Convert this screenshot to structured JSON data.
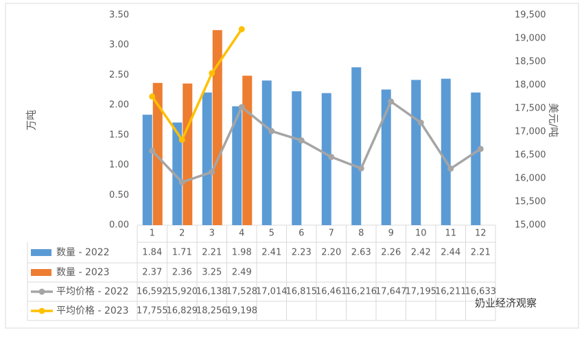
{
  "chart_data": {
    "type": "bar",
    "y_label": "万吨",
    "y2_label": "美元/吨",
    "watermark": "奶业经济观察",
    "categories": [
      "1",
      "2",
      "3",
      "4",
      "5",
      "6",
      "7",
      "8",
      "9",
      "10",
      "11",
      "12"
    ],
    "ylim": [
      0,
      3.5
    ],
    "yticks": [
      {
        "value": 0,
        "label": "0.00"
      },
      {
        "value": 0.5,
        "label": "0.50"
      },
      {
        "value": 1,
        "label": "1.00"
      },
      {
        "value": 1.5,
        "label": "1.50"
      },
      {
        "value": 2,
        "label": "2.00"
      },
      {
        "value": 2.5,
        "label": "2.50"
      },
      {
        "value": 3,
        "label": "3.00"
      },
      {
        "value": 3.5,
        "label": "3.50"
      }
    ],
    "y2lim": [
      15000,
      19500
    ],
    "y2ticks": [
      {
        "value": 15000,
        "label": "15,000"
      },
      {
        "value": 15500,
        "label": "15,500"
      },
      {
        "value": 16000,
        "label": "16,000"
      },
      {
        "value": 16500,
        "label": "16,500"
      },
      {
        "value": 17000,
        "label": "17,000"
      },
      {
        "value": 17500,
        "label": "17,500"
      },
      {
        "value": 18000,
        "label": "18,000"
      },
      {
        "value": 18500,
        "label": "18,500"
      },
      {
        "value": 19000,
        "label": "19,000"
      },
      {
        "value": 19500,
        "label": "19,500"
      }
    ],
    "grid": false,
    "series": [
      {
        "name": "数量 - 2022",
        "type": "bar",
        "color": "#5b9bd5",
        "values": [
          1.84,
          1.71,
          2.21,
          1.98,
          2.41,
          2.23,
          2.2,
          2.63,
          2.26,
          2.42,
          2.44,
          2.21
        ],
        "value_labels": [
          "1.84",
          "1.71",
          "2.21",
          "1.98",
          "2.41",
          "2.23",
          "2.20",
          "2.63",
          "2.26",
          "2.42",
          "2.44",
          "2.21"
        ]
      },
      {
        "name": "数量 - 2023",
        "type": "bar",
        "color": "#ed7d31",
        "values": [
          2.37,
          2.36,
          3.25,
          2.49,
          null,
          null,
          null,
          null,
          null,
          null,
          null,
          null
        ],
        "value_labels": [
          "2.37",
          "2.36",
          "3.25",
          "2.49",
          null,
          null,
          null,
          null,
          null,
          null,
          null,
          null
        ]
      },
      {
        "name": "平均价格 - 2022",
        "type": "line",
        "axis": "y2",
        "color": "#a5a5a5",
        "values": [
          16592,
          15920,
          16138,
          17528,
          17014,
          16815,
          16461,
          16216,
          17647,
          17195,
          16211,
          16633
        ],
        "value_labels": [
          "16,592",
          "15,920",
          "16,138",
          "17,528",
          "17,014",
          "16,815",
          "16,461",
          "16,216",
          "17,647",
          "17,195",
          "16,211",
          "16,633"
        ]
      },
      {
        "name": "平均价格 - 2023",
        "type": "line",
        "axis": "y2",
        "color": "#ffc000",
        "values": [
          17755,
          16829,
          18256,
          19198,
          null,
          null,
          null,
          null,
          null,
          null,
          null,
          null
        ],
        "value_labels": [
          "17,755",
          "16,829",
          "18,256",
          "19,198",
          null,
          null,
          null,
          null,
          null,
          null,
          null,
          null
        ]
      }
    ]
  }
}
